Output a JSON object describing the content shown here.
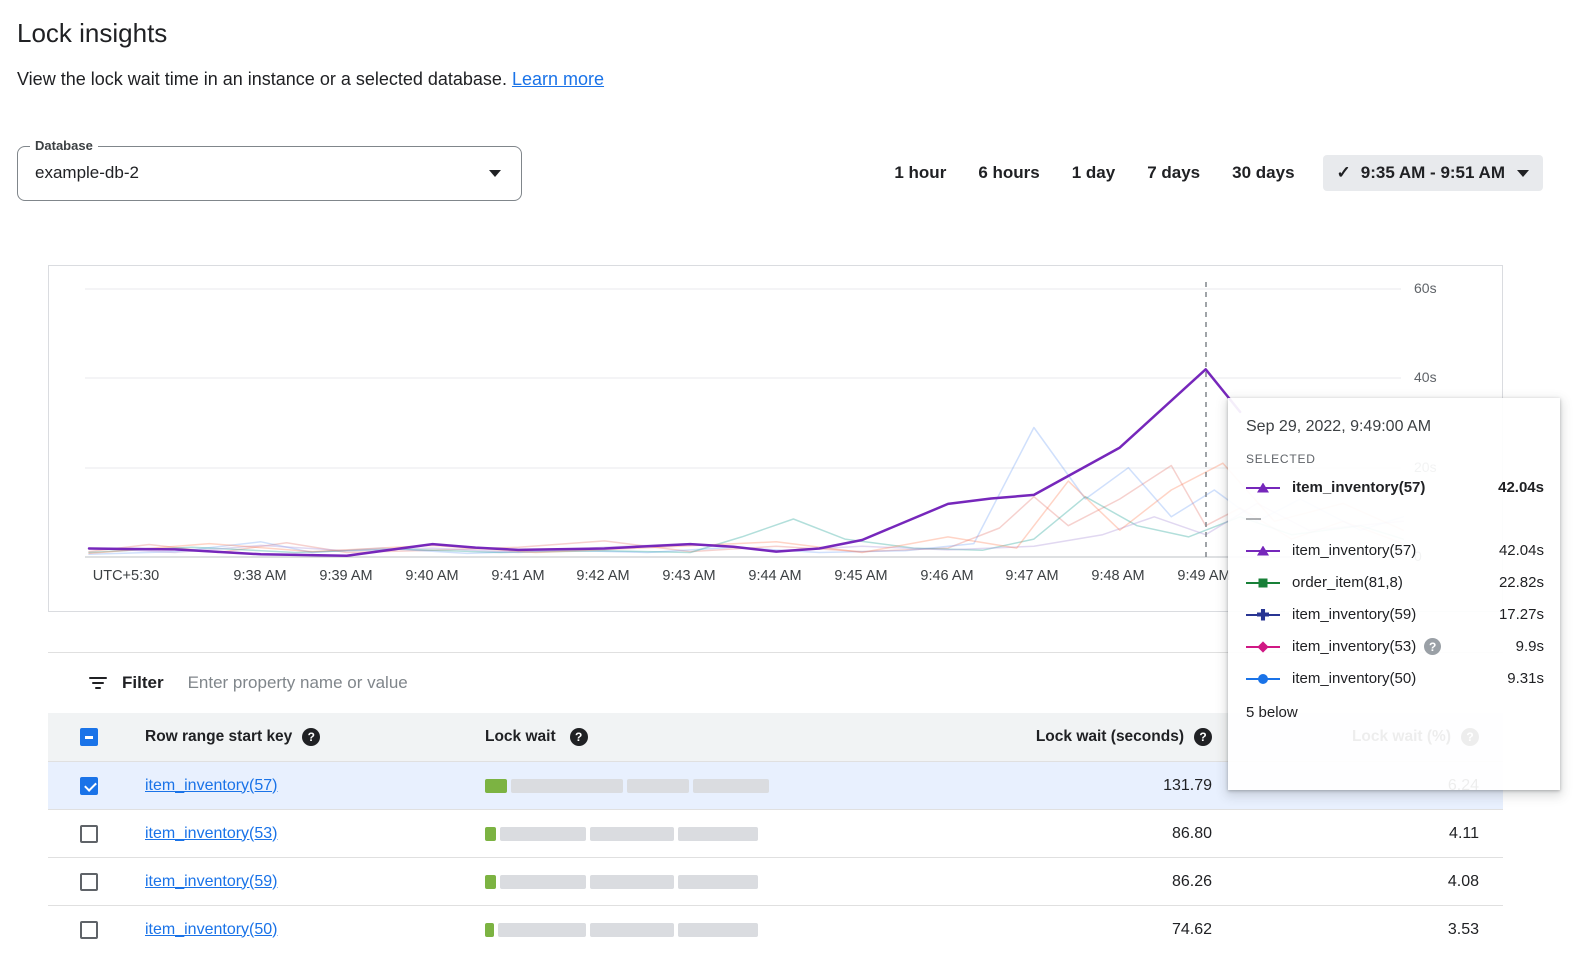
{
  "page": {
    "title": "Lock insights",
    "subtitle": "View the lock wait time in an instance or a selected database.",
    "learn_more_label": "Learn more"
  },
  "database_select": {
    "label": "Database",
    "value": "example-db-2"
  },
  "time_range": {
    "options": [
      "1 hour",
      "6 hours",
      "1 day",
      "7 days",
      "30 days"
    ],
    "selected_label": "9:35 AM - 9:51 AM"
  },
  "chart_data": {
    "type": "line",
    "y_unit": "seconds",
    "ylim": [
      0,
      60
    ],
    "grid": true,
    "y_tick_labels": [
      "60s",
      "40s",
      "20s",
      "0"
    ],
    "x_tick_labels": [
      "UTC+5:30",
      "9:38 AM",
      "9:39 AM",
      "9:40 AM",
      "9:41 AM",
      "9:42 AM",
      "9:43 AM",
      "9:44 AM",
      "9:45 AM",
      "9:46 AM",
      "9:47 AM",
      "9:48 AM",
      "9:49 AM"
    ],
    "x_unit": "minutes after 9:36 AM (UTC+5:30)",
    "selected_point": {
      "time": "9:49 AM",
      "series": "item_inventory(57)",
      "value_seconds": 42.04
    },
    "series": [
      {
        "name": "unselected-a",
        "color": "#e67c73",
        "opacity": 0.35,
        "width": 1.5,
        "points": [
          [
            0,
            1.2
          ],
          [
            0.7,
            2.8
          ],
          [
            1.5,
            1.0
          ],
          [
            2.3,
            3.2
          ],
          [
            3,
            1.0
          ],
          [
            4,
            1.5
          ],
          [
            5,
            2.2
          ],
          [
            6,
            3.6
          ],
          [
            7,
            1.2
          ],
          [
            8,
            2.4
          ],
          [
            9,
            1.2
          ],
          [
            10,
            2.0
          ],
          [
            10.6,
            6.5
          ],
          [
            11,
            13.5
          ],
          [
            11.4,
            7.0
          ],
          [
            12,
            13.0
          ],
          [
            12.6,
            20.5
          ],
          [
            13,
            7.0
          ],
          [
            13.4,
            11.0
          ],
          [
            14,
            4.0
          ],
          [
            14.6,
            8.0
          ],
          [
            15.3,
            3.0
          ]
        ]
      },
      {
        "name": "unselected-b",
        "color": "#4285f4",
        "opacity": 0.25,
        "width": 1.5,
        "points": [
          [
            0,
            0.6
          ],
          [
            1,
            1.2
          ],
          [
            2,
            3.4
          ],
          [
            2.6,
            1.0
          ],
          [
            3.4,
            2.0
          ],
          [
            4.4,
            0.8
          ],
          [
            5.5,
            1.5
          ],
          [
            6.5,
            1.0
          ],
          [
            7.5,
            2.2
          ],
          [
            8.5,
            1.0
          ],
          [
            9.5,
            1.4
          ],
          [
            10.3,
            3.0
          ],
          [
            11,
            29.0
          ],
          [
            11.6,
            13.0
          ],
          [
            12.1,
            20.0
          ],
          [
            12.6,
            9.0
          ],
          [
            13.1,
            15.0
          ],
          [
            13.6,
            8.0
          ],
          [
            14.1,
            13.0
          ],
          [
            14.8,
            6.0
          ],
          [
            15.3,
            9.0
          ]
        ]
      },
      {
        "name": "unselected-c",
        "color": "#009688",
        "opacity": 0.3,
        "width": 1.5,
        "points": [
          [
            0,
            1.0
          ],
          [
            1.2,
            2.2
          ],
          [
            2.4,
            1.0
          ],
          [
            3.6,
            1.8
          ],
          [
            4.8,
            1.0
          ],
          [
            6,
            1.4
          ],
          [
            7,
            1.0
          ],
          [
            7.6,
            4.5
          ],
          [
            8.2,
            8.5
          ],
          [
            8.8,
            4.0
          ],
          [
            9.6,
            2.0
          ],
          [
            10.4,
            1.5
          ],
          [
            11,
            4.0
          ],
          [
            11.6,
            13.5
          ],
          [
            12.2,
            7.0
          ],
          [
            12.8,
            4.5
          ],
          [
            13.4,
            9.0
          ],
          [
            14,
            5.0
          ],
          [
            14.8,
            7.0
          ],
          [
            15.3,
            4.0
          ]
        ]
      },
      {
        "name": "unselected-d",
        "color": "#b39ddb",
        "opacity": 0.4,
        "width": 1.5,
        "points": [
          [
            0,
            2.0
          ],
          [
            1,
            1.0
          ],
          [
            2,
            2.6
          ],
          [
            3,
            1.4
          ],
          [
            4,
            2.0
          ],
          [
            5,
            1.0
          ],
          [
            6,
            2.2
          ],
          [
            7,
            3.0
          ],
          [
            8,
            1.4
          ],
          [
            9,
            2.4
          ],
          [
            10,
            1.6
          ],
          [
            11,
            2.4
          ],
          [
            11.8,
            5.0
          ],
          [
            12.4,
            9.0
          ],
          [
            13,
            5.0
          ],
          [
            13.6,
            12.0
          ],
          [
            14.2,
            6.0
          ],
          [
            15.3,
            8.0
          ]
        ]
      },
      {
        "name": "unselected-e",
        "color": "#ff7043",
        "opacity": 0.3,
        "width": 1.5,
        "points": [
          [
            0,
            0.8
          ],
          [
            1.4,
            3.0
          ],
          [
            2.6,
            1.2
          ],
          [
            4,
            2.6
          ],
          [
            5.2,
            1.0
          ],
          [
            6.4,
            2.0
          ],
          [
            8,
            3.4
          ],
          [
            9,
            1.0
          ],
          [
            10,
            4.5
          ],
          [
            10.8,
            2.0
          ],
          [
            11.4,
            17.0
          ],
          [
            12,
            6.0
          ],
          [
            12.6,
            15.0
          ],
          [
            13.2,
            21.0
          ],
          [
            13.8,
            8.0
          ],
          [
            14.6,
            12.0
          ],
          [
            15.3,
            6.0
          ]
        ]
      },
      {
        "name": "item_inventory(57)",
        "selected": true,
        "color": "#7627bb",
        "opacity": 1,
        "width": 2.5,
        "points": [
          [
            0,
            1.9
          ],
          [
            0.5,
            1.8
          ],
          [
            1,
            1.7
          ],
          [
            2,
            0.6
          ],
          [
            3,
            0.3
          ],
          [
            4,
            2.9
          ],
          [
            4.5,
            2.1
          ],
          [
            5,
            1.6
          ],
          [
            6,
            1.9
          ],
          [
            6.5,
            2.4
          ],
          [
            7,
            2.9
          ],
          [
            7.5,
            2.3
          ],
          [
            8,
            1.2
          ],
          [
            8.5,
            1.9
          ],
          [
            9,
            3.8
          ],
          [
            10,
            11.9
          ],
          [
            10.5,
            13.1
          ],
          [
            11,
            13.9
          ],
          [
            12,
            24.5
          ],
          [
            13,
            42.04
          ],
          [
            13.4,
            32.5
          ]
        ]
      }
    ]
  },
  "tooltip": {
    "timestamp": "Sep 29, 2022, 9:49:00 AM",
    "selected_heading": "SELECTED",
    "selected": {
      "name": "item_inventory(57)",
      "value": "42.04s",
      "marker": "triangle",
      "color": "#7627bb"
    },
    "divider_dash": "—",
    "rows": [
      {
        "name": "item_inventory(57)",
        "value": "42.04s",
        "marker": "triangle",
        "color": "#7627bb"
      },
      {
        "name": "order_item(81,8)",
        "value": "22.82s",
        "marker": "square",
        "color": "#188038"
      },
      {
        "name": "item_inventory(59)",
        "value": "17.27s",
        "marker": "plus",
        "color": "#283593"
      },
      {
        "name": "item_inventory(53)",
        "value": "9.9s",
        "marker": "diamond",
        "color": "#d01884",
        "has_help": true
      },
      {
        "name": "item_inventory(50)",
        "value": "9.31s",
        "marker": "circle",
        "color": "#1a73e8"
      }
    ],
    "footer": "5 below"
  },
  "filter": {
    "label": "Filter",
    "placeholder": "Enter property name or value"
  },
  "table": {
    "columns": {
      "key": "Row range start key",
      "lock_wait": "Lock wait",
      "seconds": "Lock wait (seconds)",
      "percent": "Lock wait (%)"
    },
    "rows": [
      {
        "key": "item_inventory(57)",
        "seconds": "131.79",
        "percent": "6.24",
        "checked": true,
        "bar_segments": [
          22,
          112,
          62,
          76
        ]
      },
      {
        "key": "item_inventory(53)",
        "seconds": "86.80",
        "percent": "4.11",
        "checked": false,
        "bar_segments": [
          11,
          86,
          84,
          80
        ]
      },
      {
        "key": "item_inventory(59)",
        "seconds": "86.26",
        "percent": "4.08",
        "checked": false,
        "bar_segments": [
          11,
          86,
          84,
          80
        ]
      },
      {
        "key": "item_inventory(50)",
        "seconds": "74.62",
        "percent": "3.53",
        "checked": false,
        "bar_segments": [
          9,
          88,
          84,
          80
        ]
      }
    ]
  },
  "colors": {
    "accent_blue": "#1a73e8",
    "selected_series_purple": "#7627bb",
    "row_selected_bg": "#e8f0fe",
    "bar_green": "#7cb342",
    "bar_gray": "#dadce0",
    "chip_bg": "#e8eaed",
    "table_header_bg": "#f1f3f4"
  }
}
